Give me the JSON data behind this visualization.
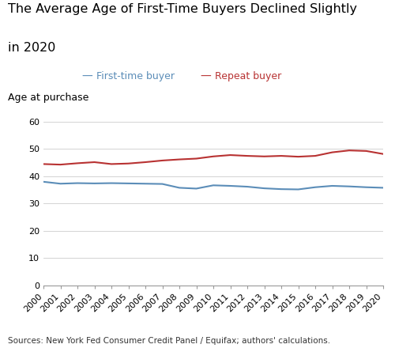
{
  "title_line1": "The Average Age of First-Time Buyers Declined Slightly",
  "title_line2": "in 2020",
  "ylabel": "Age at purchase",
  "source": "Sources: New York Fed Consumer Credit Panel / Equifax; authors' calculations.",
  "legend_first": "First-time buyer",
  "legend_repeat": "Repeat buyer",
  "color_first": "#5b8db8",
  "color_repeat": "#b83232",
  "years": [
    2000,
    2001,
    2002,
    2003,
    2004,
    2005,
    2006,
    2007,
    2008,
    2009,
    2010,
    2011,
    2012,
    2013,
    2014,
    2015,
    2016,
    2017,
    2018,
    2019,
    2020
  ],
  "first_time": [
    38.0,
    37.3,
    37.5,
    37.4,
    37.5,
    37.4,
    37.3,
    37.2,
    35.8,
    35.5,
    36.7,
    36.5,
    36.2,
    35.6,
    35.3,
    35.2,
    36.0,
    36.5,
    36.3,
    36.0,
    35.8
  ],
  "repeat": [
    44.5,
    44.3,
    44.8,
    45.2,
    44.5,
    44.7,
    45.2,
    45.8,
    46.2,
    46.5,
    47.3,
    47.8,
    47.5,
    47.3,
    47.5,
    47.2,
    47.5,
    48.8,
    49.5,
    49.3,
    48.2
  ],
  "ylim": [
    0,
    60
  ],
  "yticks": [
    0,
    10,
    20,
    30,
    40,
    50,
    60
  ],
  "xlim": [
    2000,
    2020
  ],
  "background_color": "#ffffff",
  "title_fontsize": 11.5,
  "legend_fontsize": 9,
  "axis_label_fontsize": 9,
  "tick_fontsize": 8,
  "source_fontsize": 7.5,
  "line_width": 1.5
}
